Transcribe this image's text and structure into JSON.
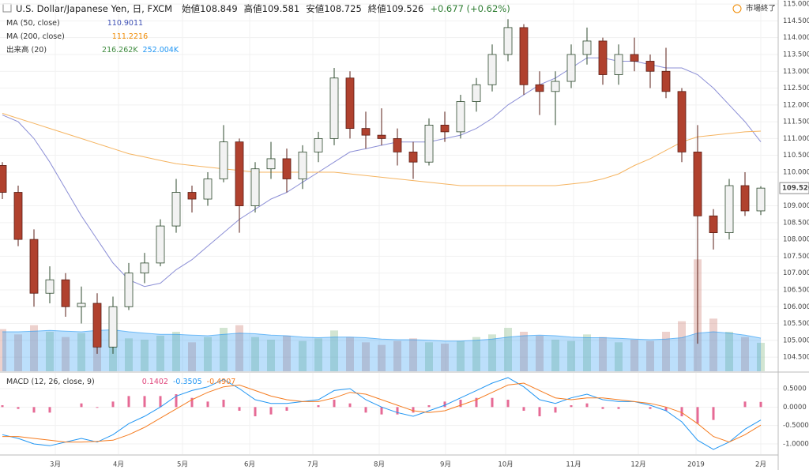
{
  "chart_data": [
    {
      "type": "candlestick",
      "title": "U.S. Dollar/Japanese Yen, 日, FXCM",
      "ohlc_labels": [
        "始値",
        "高値",
        "安値",
        "終値"
      ],
      "change": "+0.677 (+0.62%)",
      "status": "市場終了",
      "x": [
        0,
        1,
        2,
        3,
        4,
        5,
        6,
        7,
        8,
        9,
        10,
        11,
        12,
        13,
        14,
        15,
        16,
        17,
        18,
        19,
        20,
        21,
        22,
        23,
        24,
        25,
        26,
        27,
        28,
        29,
        30,
        31,
        32,
        33,
        34,
        35,
        36,
        37,
        38,
        39,
        40,
        41,
        42,
        43,
        44,
        45,
        46,
        47,
        48
      ],
      "open": [
        110.2,
        109.4,
        108.0,
        106.4,
        106.8,
        106.0,
        106.1,
        104.8,
        106.0,
        107.0,
        107.3,
        108.4,
        109.4,
        109.2,
        109.8,
        110.9,
        109.0,
        110.1,
        110.4,
        109.8,
        110.6,
        111.0,
        112.8,
        111.3,
        111.1,
        111.0,
        110.6,
        110.3,
        111.4,
        111.2,
        112.1,
        112.6,
        113.5,
        114.3,
        112.6,
        112.4,
        112.7,
        113.5,
        113.9,
        112.9,
        113.5,
        113.3,
        113.0,
        112.4,
        110.6,
        108.7,
        108.2,
        109.6,
        108.849
      ],
      "high": [
        110.3,
        109.6,
        108.3,
        107.2,
        107.0,
        106.6,
        106.4,
        106.3,
        107.3,
        107.6,
        108.6,
        109.8,
        109.6,
        110.0,
        111.4,
        111.0,
        110.3,
        110.9,
        110.7,
        110.8,
        111.2,
        113.1,
        113.0,
        111.8,
        111.9,
        111.3,
        110.9,
        111.6,
        111.8,
        112.3,
        112.8,
        113.8,
        114.55,
        114.4,
        113.0,
        113.0,
        113.8,
        114.3,
        114.0,
        113.8,
        114.0,
        113.5,
        113.7,
        112.5,
        111.4,
        108.9,
        109.8,
        110.0,
        109.581
      ],
      "low": [
        109.2,
        107.8,
        106.0,
        106.1,
        105.7,
        105.5,
        104.6,
        104.6,
        105.9,
        106.7,
        107.2,
        108.2,
        108.8,
        109.0,
        109.7,
        108.2,
        108.8,
        109.8,
        109.4,
        109.5,
        110.3,
        110.8,
        111.0,
        110.7,
        110.8,
        110.2,
        109.8,
        110.2,
        110.9,
        111.0,
        111.8,
        112.4,
        113.3,
        112.3,
        111.7,
        111.4,
        112.5,
        113.2,
        112.6,
        112.6,
        113.0,
        112.5,
        112.2,
        110.3,
        104.9,
        107.7,
        108.0,
        108.7,
        108.725
      ],
      "close": [
        109.4,
        108.0,
        106.4,
        106.8,
        106.0,
        106.1,
        104.8,
        106.0,
        107.0,
        107.3,
        108.4,
        109.4,
        109.2,
        109.8,
        110.9,
        109.0,
        110.1,
        110.4,
        109.8,
        110.6,
        111.0,
        112.8,
        111.3,
        111.1,
        111.0,
        110.6,
        110.3,
        111.4,
        111.2,
        112.1,
        112.6,
        113.5,
        114.3,
        112.6,
        112.4,
        112.7,
        113.5,
        113.9,
        112.9,
        113.5,
        113.3,
        113.0,
        112.4,
        110.6,
        108.7,
        108.2,
        109.6,
        108.849,
        109.526
      ],
      "up_color": "#f2f2f2",
      "up_stroke": "#2e4a2e",
      "down_color": "#b0412e",
      "down_stroke": "#5a1d14",
      "lines": [
        {
          "name": "MA (50, close)",
          "color": "#8c8fd6",
          "value_color": "#3f51b5",
          "values": [
            111.7,
            111.5,
            111.0,
            110.3,
            109.5,
            108.7,
            108.0,
            107.3,
            106.8,
            106.6,
            106.7,
            107.1,
            107.4,
            107.8,
            108.2,
            108.6,
            108.9,
            109.2,
            109.4,
            109.7,
            110.0,
            110.3,
            110.6,
            110.7,
            110.8,
            110.9,
            110.9,
            110.9,
            111.0,
            111.1,
            111.3,
            111.6,
            112.0,
            112.3,
            112.6,
            112.8,
            113.1,
            113.4,
            113.4,
            113.3,
            113.3,
            113.2,
            113.1,
            113.1,
            112.9,
            112.5,
            112.0,
            111.5,
            110.9011
          ]
        },
        {
          "name": "MA (200, close)",
          "color": "#f5b461",
          "value_color": "#f08a00",
          "values": [
            111.75,
            111.6,
            111.45,
            111.3,
            111.15,
            111.0,
            110.85,
            110.7,
            110.55,
            110.45,
            110.35,
            110.25,
            110.2,
            110.15,
            110.1,
            110.05,
            110.0,
            110.0,
            110.0,
            110.0,
            110.0,
            110.0,
            109.95,
            109.9,
            109.85,
            109.8,
            109.75,
            109.7,
            109.65,
            109.6,
            109.6,
            109.6,
            109.6,
            109.6,
            109.6,
            109.6,
            109.65,
            109.7,
            109.8,
            109.95,
            110.2,
            110.4,
            110.65,
            110.9,
            111.05,
            111.1,
            111.15,
            111.2,
            111.2216
          ]
        }
      ],
      "volume": {
        "name": "出来高 (20)",
        "values": [
          320,
          280,
          350,
          300,
          260,
          290,
          380,
          330,
          250,
          240,
          270,
          300,
          220,
          260,
          330,
          350,
          260,
          240,
          270,
          230,
          250,
          310,
          260,
          220,
          200,
          230,
          250,
          220,
          210,
          230,
          260,
          280,
          330,
          300,
          270,
          240,
          230,
          280,
          260,
          220,
          240,
          230,
          300,
          380,
          850,
          400,
          300,
          260,
          216.262
        ],
        "value_label": "216.262K",
        "value_color": "#3d8a3d",
        "ma_values": [
          300,
          300,
          305,
          310,
          305,
          300,
          310,
          315,
          300,
          290,
          280,
          280,
          275,
          270,
          280,
          290,
          285,
          275,
          270,
          260,
          255,
          260,
          260,
          255,
          245,
          240,
          240,
          235,
          230,
          230,
          235,
          245,
          260,
          270,
          275,
          270,
          260,
          255,
          255,
          250,
          245,
          240,
          245,
          255,
          290,
          300,
          290,
          275,
          252.004
        ],
        "ma_value_label": "252.004K",
        "ma_color": "#2196f3",
        "vlim": [
          0,
          900
        ]
      },
      "xlim": [
        -0.15,
        49.1
      ],
      "xticks": [
        {
          "value": 3.35,
          "label": "3月"
        },
        {
          "value": 7.35,
          "label": "4月"
        },
        {
          "value": 11.4,
          "label": "5月"
        },
        {
          "value": 15.65,
          "label": "6月"
        },
        {
          "value": 19.65,
          "label": "7月"
        },
        {
          "value": 23.85,
          "label": "8月"
        },
        {
          "value": 28.05,
          "label": "9月"
        },
        {
          "value": 31.85,
          "label": "10月"
        },
        {
          "value": 36.15,
          "label": "11月"
        },
        {
          "value": 40.25,
          "label": "12月"
        },
        {
          "value": 43.9,
          "label": "2019"
        },
        {
          "value": 48.0,
          "label": "2月"
        }
      ],
      "ylim": [
        104.08,
        115.12
      ],
      "yticks": [
        {
          "value": 104.5,
          "label": "104.500"
        },
        {
          "value": 105,
          "label": "105.000"
        },
        {
          "value": 105.5,
          "label": "105.500"
        },
        {
          "value": 106,
          "label": "106.000"
        },
        {
          "value": 106.5,
          "label": "106.500"
        },
        {
          "value": 107,
          "label": "107.000"
        },
        {
          "value": 107.5,
          "label": "107.500"
        },
        {
          "value": 108,
          "label": "108.000"
        },
        {
          "value": 108.5,
          "label": "108.500"
        },
        {
          "value": 109,
          "label": "109.000"
        },
        {
          "value": 110,
          "label": "110.000"
        },
        {
          "value": 110.5,
          "label": "110.500"
        },
        {
          "value": 111,
          "label": "111.000"
        },
        {
          "value": 111.5,
          "label": "111.500"
        },
        {
          "value": 112,
          "label": "112.000"
        },
        {
          "value": 112.5,
          "label": "112.500"
        },
        {
          "value": 113,
          "label": "113.000"
        },
        {
          "value": 113.5,
          "label": "113.500"
        },
        {
          "value": 114,
          "label": "114.000"
        },
        {
          "value": 114.5,
          "label": "114.500"
        },
        {
          "value": 115,
          "label": "115.000"
        }
      ],
      "grid": true
    },
    {
      "type": "macd",
      "title": "MACD (12, 26, close, 9)",
      "hist": {
        "color": "#e0457b",
        "values": [
          0.05,
          -0.05,
          -0.15,
          -0.15,
          0.0,
          0.1,
          -0.02,
          0.15,
          0.3,
          0.3,
          0.3,
          0.35,
          0.25,
          0.15,
          0.2,
          -0.1,
          -0.25,
          -0.2,
          -0.1,
          0.0,
          0.05,
          0.2,
          0.1,
          -0.15,
          -0.2,
          -0.2,
          -0.15,
          0.05,
          0.15,
          0.2,
          0.25,
          0.25,
          0.2,
          -0.1,
          -0.25,
          -0.15,
          0.05,
          0.1,
          -0.05,
          -0.05,
          0.0,
          -0.05,
          -0.1,
          -0.25,
          -0.45,
          -0.35,
          0.0,
          0.15,
          0.1402
        ]
      },
      "macd": {
        "color": "#2196f3",
        "values": [
          -0.75,
          -0.85,
          -1.0,
          -1.05,
          -0.95,
          -0.85,
          -0.95,
          -0.75,
          -0.45,
          -0.25,
          0.0,
          0.3,
          0.45,
          0.55,
          0.75,
          0.5,
          0.2,
          0.1,
          0.1,
          0.15,
          0.2,
          0.45,
          0.5,
          0.2,
          0.0,
          -0.15,
          -0.25,
          -0.1,
          0.05,
          0.25,
          0.45,
          0.65,
          0.8,
          0.55,
          0.2,
          0.1,
          0.25,
          0.35,
          0.2,
          0.15,
          0.15,
          0.05,
          -0.1,
          -0.4,
          -0.9,
          -1.15,
          -0.95,
          -0.6,
          -0.3505
        ]
      },
      "signal": {
        "color": "#f57c20",
        "values": [
          -0.8,
          -0.8,
          -0.85,
          -0.9,
          -0.95,
          -0.95,
          -0.93,
          -0.9,
          -0.75,
          -0.55,
          -0.3,
          -0.05,
          0.2,
          0.4,
          0.55,
          0.6,
          0.45,
          0.3,
          0.2,
          0.15,
          0.15,
          0.25,
          0.4,
          0.35,
          0.2,
          0.05,
          -0.1,
          -0.15,
          -0.1,
          0.05,
          0.2,
          0.4,
          0.6,
          0.65,
          0.45,
          0.25,
          0.2,
          0.25,
          0.25,
          0.2,
          0.15,
          0.1,
          0.0,
          -0.15,
          -0.45,
          -0.8,
          -0.95,
          -0.75,
          -0.4907
        ]
      },
      "ylim": [
        -1.28,
        0.93
      ],
      "yticks": [
        {
          "value": 0.5,
          "label": "0.5000"
        },
        {
          "value": 0,
          "label": "0.0000"
        },
        {
          "value": -0.5,
          "label": "-0.5000"
        },
        {
          "value": -1,
          "label": "-1.0000"
        }
      ]
    }
  ]
}
